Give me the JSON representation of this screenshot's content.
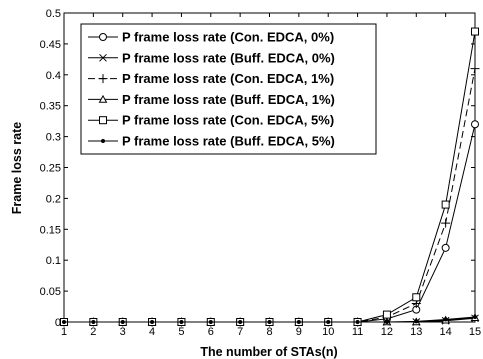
{
  "chart_data": {
    "type": "line",
    "title": "",
    "xlabel": "The number of STAs(n)",
    "ylabel": "Frame loss rate",
    "xlim": [
      1,
      15
    ],
    "ylim": [
      0,
      0.5
    ],
    "xticks": [
      1,
      2,
      3,
      4,
      5,
      6,
      7,
      8,
      9,
      10,
      11,
      12,
      13,
      14,
      15
    ],
    "yticks": [
      0,
      0.05,
      0.1,
      0.15,
      0.2,
      0.25,
      0.3,
      0.35,
      0.4,
      0.45,
      0.5
    ],
    "ytick_labels": [
      "0",
      "0.05",
      "0.1",
      "0.15",
      "0.2",
      "0.25",
      "0.3",
      "0.35",
      "0.4",
      "0.45",
      "0.5"
    ],
    "grid": false,
    "legend_position": "top-left",
    "x": [
      1,
      2,
      3,
      4,
      5,
      6,
      7,
      8,
      9,
      10,
      11,
      12,
      13,
      14,
      15
    ],
    "series": [
      {
        "name": "P frame loss rate (Con. EDCA, 0%)",
        "marker": "circle",
        "line": "solid",
        "values": [
          0,
          0,
          0,
          0,
          0,
          0,
          0,
          0,
          0,
          0,
          0,
          0.005,
          0.02,
          0.12,
          0.32
        ]
      },
      {
        "name": "P frame loss rate (Buff. EDCA, 0%)",
        "marker": "x",
        "line": "solid",
        "values": [
          0,
          0,
          0,
          0,
          0,
          0,
          0,
          0,
          0,
          0,
          0,
          0,
          0,
          0.002,
          0.006
        ]
      },
      {
        "name": "P frame loss rate (Con. EDCA, 1%)",
        "marker": "plus",
        "line": "dashed",
        "values": [
          0,
          0,
          0,
          0,
          0,
          0,
          0,
          0,
          0,
          0,
          0,
          0.008,
          0.03,
          0.16,
          0.41
        ]
      },
      {
        "name": "P frame loss rate (Buff. EDCA, 1%)",
        "marker": "triangle",
        "line": "solid",
        "values": [
          0,
          0,
          0,
          0,
          0,
          0,
          0,
          0,
          0,
          0,
          0,
          0,
          0,
          0.003,
          0.007
        ]
      },
      {
        "name": "P frame loss rate (Con. EDCA, 5%)",
        "marker": "square",
        "line": "solid",
        "values": [
          0,
          0,
          0,
          0,
          0,
          0,
          0,
          0,
          0,
          0,
          0,
          0.012,
          0.04,
          0.19,
          0.47
        ]
      },
      {
        "name": "P frame loss rate (Buff. EDCA, 5%)",
        "marker": "dot",
        "line": "solid",
        "values": [
          0,
          0,
          0,
          0,
          0,
          0,
          0,
          0,
          0,
          0,
          0,
          0,
          0.001,
          0.004,
          0.008
        ]
      }
    ]
  }
}
